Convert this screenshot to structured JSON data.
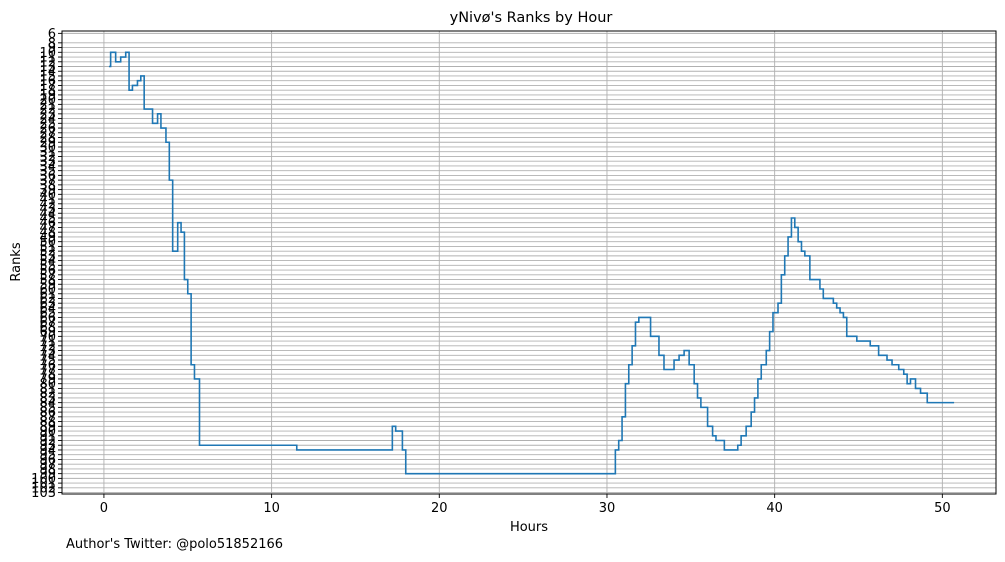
{
  "chart_data": {
    "type": "line",
    "step": true,
    "title": "yNivø's Ranks by Hour",
    "xlabel": "Hours",
    "ylabel": "Ranks",
    "xlim": [
      -2.5,
      53.2
    ],
    "ylim": [
      103.3,
      5.5
    ],
    "y_inverted": true,
    "xticks": [
      0,
      10,
      20,
      30,
      40,
      50
    ],
    "yticks": [
      6,
      8,
      9,
      10,
      11,
      12,
      13,
      14,
      15,
      16,
      17,
      18,
      19,
      20,
      21,
      22,
      23,
      24,
      25,
      26,
      27,
      28,
      29,
      30,
      31,
      32,
      33,
      34,
      35,
      36,
      37,
      38,
      39,
      40,
      41,
      42,
      43,
      44,
      45,
      46,
      47,
      48,
      49,
      50,
      51,
      52,
      53,
      54,
      55,
      56,
      57,
      58,
      59,
      60,
      61,
      62,
      63,
      64,
      65,
      66,
      67,
      68,
      69,
      70,
      71,
      72,
      73,
      74,
      75,
      76,
      77,
      78,
      79,
      80,
      81,
      82,
      83,
      84,
      85,
      86,
      87,
      88,
      89,
      90,
      91,
      92,
      93,
      94,
      95,
      96,
      97,
      98,
      99,
      100,
      101,
      102,
      103
    ],
    "ytick_labels": [
      "6",
      "8",
      "9",
      "10",
      "11",
      "12",
      "13",
      "14",
      "15",
      "16",
      "17",
      "18",
      "19",
      "20",
      "21",
      "22",
      "23",
      "24",
      "25",
      "26",
      "27",
      "28",
      "29",
      "30",
      "31",
      "32",
      "33",
      "34",
      "35",
      "36",
      "37",
      "38",
      "39",
      "40",
      "41",
      "42",
      "43",
      "44",
      "45",
      "46",
      "47",
      "48",
      "49",
      "50",
      "51",
      "52",
      "53",
      "54",
      "55",
      "56",
      "57",
      "58",
      "59",
      "60",
      "61",
      "62",
      "63",
      "64",
      "65",
      "66",
      "67",
      "68",
      "69",
      "70",
      "71",
      "72",
      "73",
      "74",
      "75",
      "76",
      "77",
      "78",
      "79",
      "80",
      "81",
      "82",
      "83",
      "84",
      "85",
      "86",
      "87",
      "88",
      "89",
      "90",
      "91",
      "92",
      "93",
      "94",
      "95",
      "96",
      "97",
      "98",
      "99",
      "100",
      "101",
      "102",
      "103"
    ],
    "grid": true,
    "series": [
      {
        "color": "#1f77b4",
        "x": [
          0.3,
          0.4,
          0.7,
          1.0,
          1.3,
          1.5,
          1.7,
          2.0,
          2.2,
          2.4,
          2.9,
          3.2,
          3.4,
          3.7,
          3.9,
          4.1,
          4.4,
          4.6,
          4.8,
          5.0,
          5.2,
          5.4,
          5.7,
          5.9,
          11.5,
          17.2,
          17.4,
          17.8,
          18.0,
          30.3,
          30.5,
          30.7,
          30.9,
          31.1,
          31.3,
          31.5,
          31.7,
          31.9,
          32.1,
          32.6,
          33.1,
          33.4,
          33.6,
          34.0,
          34.3,
          34.6,
          34.9,
          35.2,
          35.4,
          35.6,
          36.0,
          36.3,
          36.5,
          36.7,
          37.0,
          37.6,
          37.8,
          38.0,
          38.3,
          38.6,
          38.8,
          39.0,
          39.2,
          39.5,
          39.7,
          39.9,
          40.2,
          40.4,
          40.6,
          40.8,
          41.0,
          41.2,
          41.4,
          41.6,
          41.8,
          42.1,
          42.4,
          42.7,
          42.9,
          43.5,
          43.7,
          43.9,
          44.1,
          44.3,
          44.6,
          44.9,
          45.7,
          46.2,
          46.7,
          47.0,
          47.4,
          47.7,
          47.9,
          48.1,
          48.4,
          48.7,
          48.9,
          49.1,
          50.0,
          50.7
        ],
        "y": [
          13,
          10,
          12,
          11,
          10,
          18,
          17,
          16,
          15,
          22,
          25,
          23,
          26,
          29,
          37,
          52,
          46,
          48,
          58,
          61,
          76,
          79,
          93,
          93,
          94,
          89,
          90,
          94,
          99,
          99,
          94,
          92,
          87,
          80,
          76,
          72,
          67,
          66,
          66,
          70,
          74,
          77,
          77,
          75,
          74,
          73,
          76,
          80,
          83,
          85,
          89,
          91,
          92,
          92,
          94,
          94,
          93,
          91,
          89,
          86,
          83,
          79,
          76,
          73,
          69,
          65,
          63,
          57,
          53,
          49,
          45,
          47,
          50,
          52,
          53,
          58,
          58,
          60,
          62,
          63,
          64,
          65,
          66,
          70,
          70,
          71,
          72,
          74,
          75,
          76,
          77,
          78,
          80,
          79,
          81,
          82,
          82,
          84,
          84,
          84
        ]
      }
    ]
  },
  "footer": {
    "author": "Author's Twitter: @polo51852166"
  }
}
